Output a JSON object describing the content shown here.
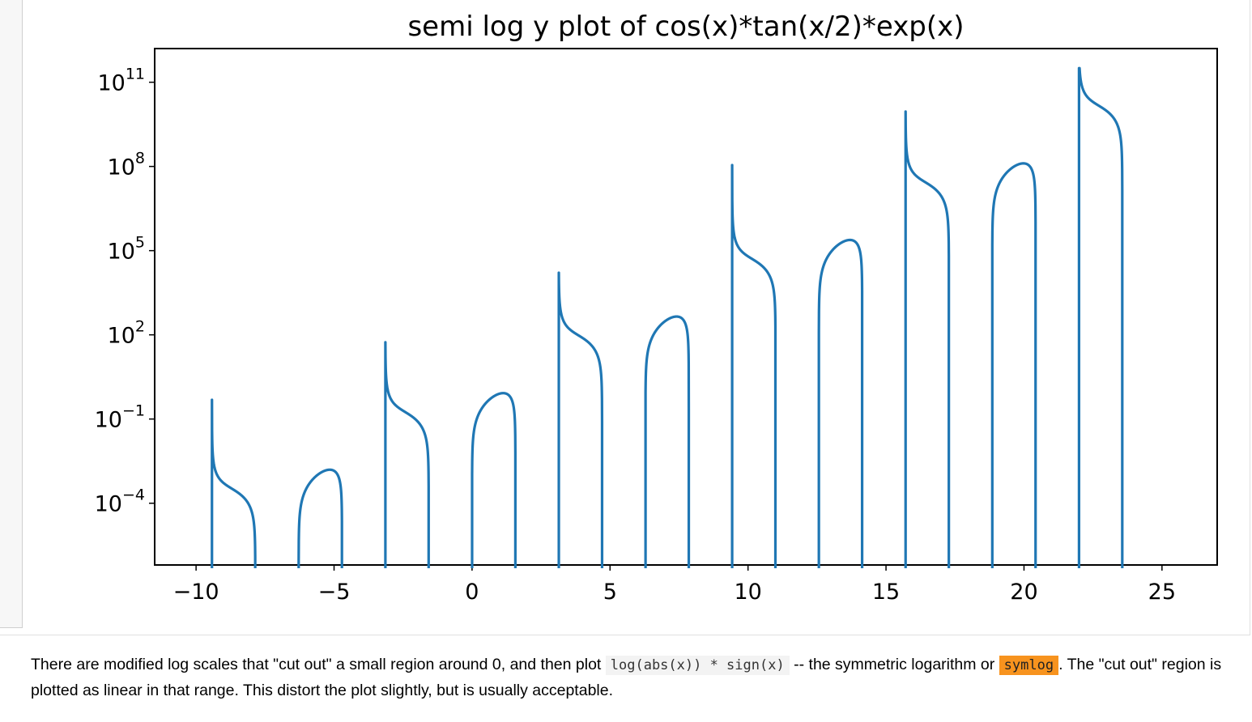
{
  "chart_data": {
    "type": "line",
    "title": "semi log y plot of cos(x)*tan(x/2)*exp(x)",
    "xlabel": "",
    "ylabel": "",
    "yscale": "log",
    "xlim": [
      -11.5,
      27
    ],
    "ylim_log10": [
      -6.2,
      12.2
    ],
    "x_ticks": [
      -10,
      -5,
      0,
      5,
      10,
      15,
      20,
      25
    ],
    "x_tick_labels": [
      "−10",
      "−5",
      "0",
      "5",
      "10",
      "15",
      "20",
      "25"
    ],
    "y_ticks": [
      {
        "base": "10",
        "exp": "−4",
        "log10": -4
      },
      {
        "base": "10",
        "exp": "−1",
        "log10": -1
      },
      {
        "base": "10",
        "exp": "2",
        "log10": 2
      },
      {
        "base": "10",
        "exp": "5",
        "log10": 5
      },
      {
        "base": "10",
        "exp": "8",
        "log10": 8
      },
      {
        "base": "10",
        "exp": "11",
        "log10": 11
      }
    ],
    "series": [
      {
        "function": "cos(x)*tan(x/2)*exp(x)",
        "x_range": [
          -10,
          25
        ],
        "color": "#1f77b4"
      }
    ],
    "grid": false
  },
  "paragraph": {
    "text_before": "There are modified log scales that \"cut out\" a small region around 0, and then plot ",
    "code1": "log(abs(x)) * sign(x)",
    "text_middle": " -- the symmetric logarithm or ",
    "code2": "symlog",
    "text_after": ". The \"cut out\" region is plotted as linear in that range. This distort the plot slightly, but is usually acceptable."
  }
}
